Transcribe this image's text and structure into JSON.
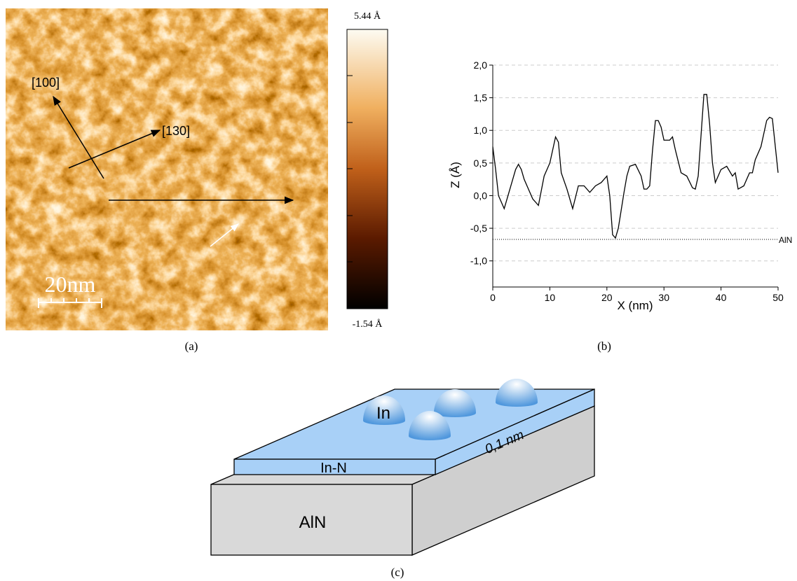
{
  "panel_a": {
    "colorbar_max": "5.44 Å",
    "colorbar_min": "-1.54 Å",
    "direction_1": "[100]",
    "direction_2": "[130]",
    "scale": "20nm",
    "caption": "(a)"
  },
  "chart_data": {
    "type": "line",
    "caption": "(b)",
    "xlabel": "X (nm)",
    "ylabel": "Z (Å)",
    "color": "#000000",
    "x": [
      0,
      0.5,
      1,
      1.5,
      2,
      3,
      4,
      4.5,
      5,
      5.5,
      6,
      7,
      8,
      9,
      10,
      11,
      11.5,
      12,
      13,
      14,
      15,
      16,
      17,
      18,
      19,
      20,
      20.5,
      21,
      21.5,
      22,
      23,
      23.5,
      24,
      25,
      26,
      26.5,
      27,
      27.5,
      28,
      28.5,
      29,
      29.5,
      30,
      31,
      31.5,
      32,
      33,
      34,
      35,
      35.5,
      36,
      37,
      37.5,
      38,
      38.5,
      39,
      40,
      41,
      42,
      42.5,
      43,
      44,
      45,
      45.5,
      46,
      47,
      48,
      48.5,
      49,
      50
    ],
    "values": [
      0.75,
      0.4,
      0.0,
      -0.1,
      -0.2,
      0.1,
      0.4,
      0.48,
      0.4,
      0.25,
      0.15,
      -0.05,
      -0.15,
      0.3,
      0.5,
      0.9,
      0.82,
      0.35,
      0.1,
      -0.2,
      0.15,
      0.15,
      0.05,
      0.15,
      0.2,
      0.3,
      0.0,
      -0.6,
      -0.65,
      -0.5,
      0.05,
      0.3,
      0.45,
      0.48,
      0.3,
      0.1,
      0.1,
      0.15,
      0.7,
      1.15,
      1.15,
      1.05,
      0.85,
      0.85,
      0.9,
      0.7,
      0.35,
      0.3,
      0.12,
      0.1,
      0.3,
      1.55,
      1.55,
      1.1,
      0.5,
      0.2,
      0.4,
      0.45,
      0.3,
      0.35,
      0.1,
      0.15,
      0.35,
      0.35,
      0.55,
      0.75,
      1.15,
      1.2,
      1.18,
      0.35
    ],
    "xlim": [
      0,
      50
    ],
    "xticks": [
      0,
      10,
      20,
      30,
      40,
      50
    ],
    "ylim": [
      -1.4,
      2.0
    ],
    "yticks": [
      {
        "value": -1.0,
        "label": "-1,0"
      },
      {
        "value": -0.5,
        "label": "-0,5"
      },
      {
        "value": 0,
        "label": "0,0"
      },
      {
        "value": 0.5,
        "label": "0,5"
      },
      {
        "value": 1.0,
        "label": "1,0"
      },
      {
        "value": 1.5,
        "label": "1,5"
      },
      {
        "value": 2.0,
        "label": "2,0"
      }
    ],
    "grid": true,
    "annotations": [
      {
        "text": "AlN",
        "y": -0.67
      }
    ]
  },
  "panel_c": {
    "dot_label": "In",
    "layer_label": "In-N",
    "thickness": "0,1 nm",
    "substrate": "AlN",
    "caption": "(c)"
  }
}
